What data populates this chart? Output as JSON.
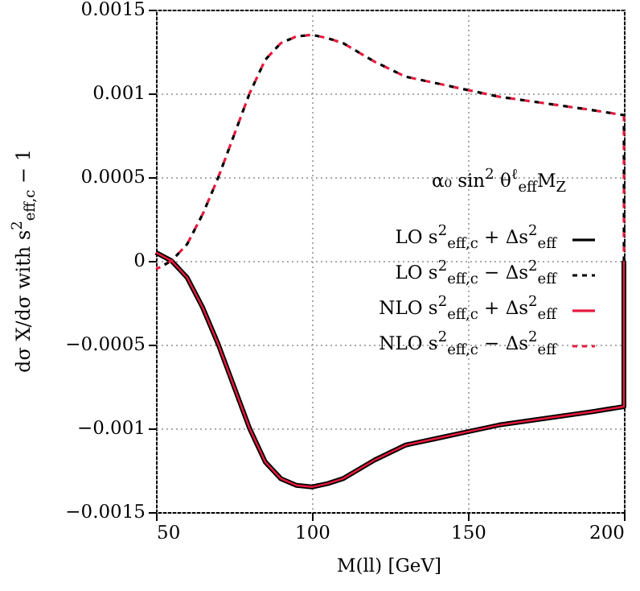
{
  "chart_data": {
    "type": "line",
    "xlabel": "M(ll) [GeV]",
    "ylabel": "dσ X/dσ with s$^{2}$$_{eff,c}$ − 1",
    "annotations": [
      "α₀ sin$^{2}$ θ$^{ℓ}$$_{eff}$M$_{Z}$"
    ],
    "x": [
      50,
      55,
      60,
      65,
      70,
      75,
      80,
      85,
      90,
      95,
      100,
      105,
      110,
      120,
      130,
      140,
      150,
      160,
      175,
      190,
      200,
      200
    ],
    "series": [
      {
        "name": "LO s$^{2}$$_{eff,c}$ + Δs$^{2}$$_{eff}$",
        "color": "#000000",
        "line_style": "solid",
        "values": [
          5e-05,
          0.0,
          -0.0001,
          -0.00028,
          -0.0005,
          -0.00075,
          -0.001,
          -0.0012,
          -0.0013,
          -0.00134,
          -0.00135,
          -0.00133,
          -0.0013,
          -0.00119,
          -0.0011,
          -0.00106,
          -0.00102,
          -0.00098,
          -0.00094,
          -0.0009,
          -0.00087,
          0
        ]
      },
      {
        "name": "LO s$^{2}$$_{eff,c}$ − Δs$^{2}$$_{eff}$",
        "color": "#000000",
        "line_style": "dotted",
        "values": [
          -5e-05,
          0.0,
          0.0001,
          0.00028,
          0.0005,
          0.00075,
          0.001,
          0.0012,
          0.0013,
          0.00134,
          0.00135,
          0.00133,
          0.0013,
          0.00119,
          0.0011,
          0.00106,
          0.00102,
          0.00098,
          0.00094,
          0.0009,
          0.00087,
          0
        ]
      },
      {
        "name": "NLO s$^{2}$$_{eff,c}$ + Δs$^{2}$$_{eff}$",
        "color": "#e8193c",
        "line_style": "solid",
        "values": [
          5e-05,
          0.0,
          -0.0001,
          -0.00028,
          -0.0005,
          -0.00075,
          -0.001,
          -0.0012,
          -0.0013,
          -0.00134,
          -0.00135,
          -0.00133,
          -0.0013,
          -0.00119,
          -0.0011,
          -0.00106,
          -0.00102,
          -0.00098,
          -0.00094,
          -0.0009,
          -0.00087,
          0
        ]
      },
      {
        "name": "NLO s$^{2}$$_{eff,c}$ − Δs$^{2}$$_{eff}$",
        "color": "#e8193c",
        "line_style": "dotted",
        "values": [
          -5e-05,
          0.0,
          0.0001,
          0.00028,
          0.0005,
          0.00075,
          0.001,
          0.0012,
          0.0013,
          0.00134,
          0.00135,
          0.00133,
          0.0013,
          0.00119,
          0.0011,
          0.00106,
          0.00102,
          0.00098,
          0.00094,
          0.0009,
          0.00087,
          0
        ]
      }
    ],
    "xlim": [
      50,
      200
    ],
    "xticks": [
      50,
      100,
      150,
      200
    ],
    "ylim": [
      -0.0015,
      0.0015
    ],
    "yticks": [
      -0.0015,
      -0.001,
      -0.0005,
      0,
      0.0005,
      0.001,
      0.0015
    ],
    "grid": true,
    "legend": "right",
    "marker": "none"
  }
}
